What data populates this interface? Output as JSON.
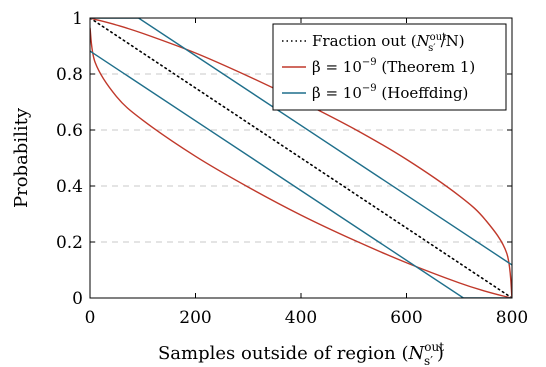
{
  "chart_data": {
    "type": "line",
    "xlabel": "Samples outside of region",
    "xlabel_math": {
      "base": "N",
      "sup": "out",
      "sub": "s′"
    },
    "ylabel": "Probability",
    "xlim": [
      0,
      800
    ],
    "ylim": [
      0,
      1
    ],
    "x_ticks": [
      0,
      200,
      400,
      600,
      800
    ],
    "y_ticks": [
      0,
      0.2,
      0.4,
      0.6,
      0.8,
      1
    ],
    "x_tick_labels": [
      "0",
      "200",
      "400",
      "600",
      "800"
    ],
    "y_tick_labels": [
      "0",
      "0.2",
      "0.4",
      "0.6",
      "0.8",
      "1"
    ],
    "grid": "horizontal-dashed",
    "legend_position": "top-right",
    "legend": [
      {
        "prefix": "Fraction out (",
        "math": {
          "base": "N",
          "sup": "out",
          "sub": "s′"
        },
        "suffix": "/N)"
      },
      {
        "prefix": "β = 10",
        "sup": "−9",
        "suffix": " (Theorem 1)"
      },
      {
        "prefix": "β = 10",
        "sup": "−9",
        "suffix": " (Hoeffding)"
      }
    ],
    "series": [
      {
        "style": "dotted",
        "color": "#000000",
        "x": [
          0,
          800
        ],
        "y": [
          1,
          0
        ]
      },
      {
        "style": "solid",
        "color": "#c0392b",
        "x": [
          0,
          10,
          50,
          100,
          200,
          300,
          400,
          500,
          600,
          700,
          750,
          790,
          800
        ],
        "y": [
          1.0,
          0.995,
          0.975,
          0.945,
          0.875,
          0.792,
          0.702,
          0.605,
          0.495,
          0.365,
          0.278,
          0.16,
          0.0
        ]
      },
      {
        "style": "solid",
        "color": "#c0392b",
        "x": [
          0,
          10,
          50,
          100,
          200,
          300,
          400,
          500,
          600,
          700,
          750,
          790,
          800
        ],
        "y": [
          0.965,
          0.84,
          0.72,
          0.635,
          0.506,
          0.396,
          0.296,
          0.207,
          0.126,
          0.054,
          0.024,
          0.004,
          0.0
        ]
      },
      {
        "style": "solid",
        "color": "#1f6f8b",
        "x": [
          0,
          92,
          800
        ],
        "y": [
          1.0,
          1.0,
          0.118
        ]
      },
      {
        "style": "solid",
        "color": "#1f6f8b",
        "x": [
          0,
          708,
          800
        ],
        "y": [
          0.882,
          0.0,
          0.0
        ]
      }
    ]
  }
}
